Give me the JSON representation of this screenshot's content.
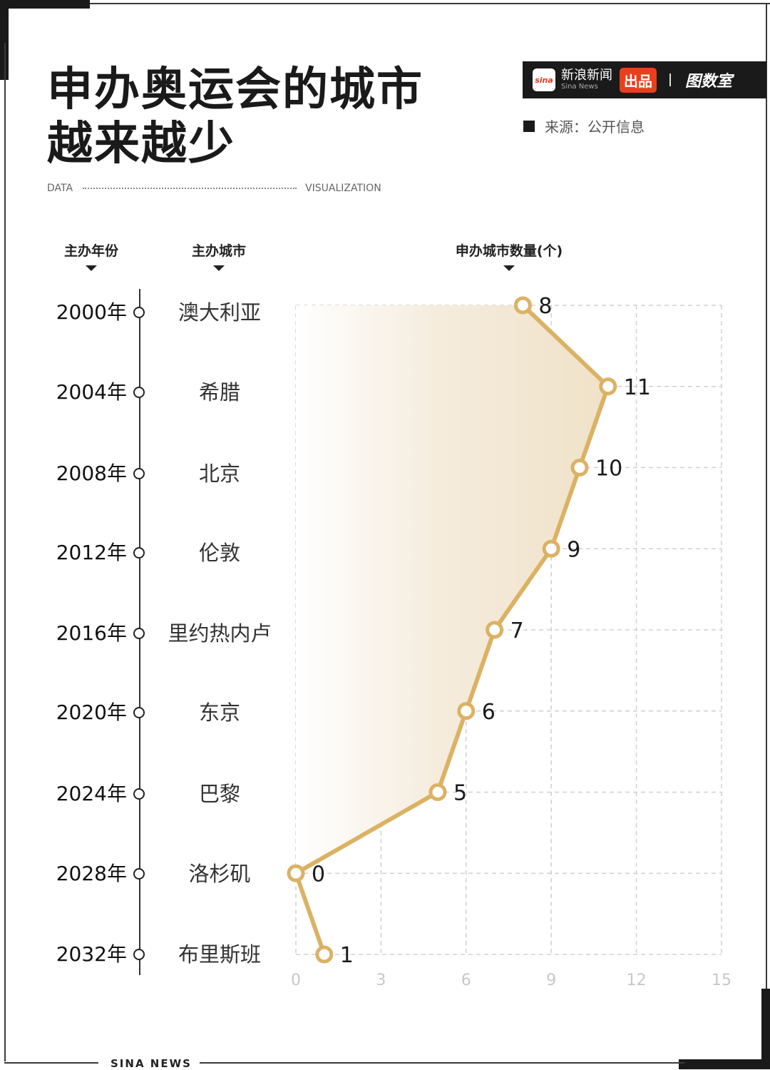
{
  "title": {
    "line1": "申办奥运会的城市",
    "line2": "越来越少"
  },
  "subtitle": {
    "left": "DATA",
    "right": "VISUALIZATION"
  },
  "brand": {
    "sina_logo": "sina",
    "name_cn": "新浪新闻",
    "name_en": "Sina News",
    "badge": "出品",
    "partner": "图数室"
  },
  "source": "来源：公开信息",
  "columns": {
    "year": "主办年份",
    "city": "主办城市",
    "count": "申办城市数量(个)"
  },
  "rows": [
    {
      "year": "2000年",
      "city": "澳大利亚",
      "count": "8"
    },
    {
      "year": "2004年",
      "city": "希腊",
      "count": "11"
    },
    {
      "year": "2008年",
      "city": "北京",
      "count": "10"
    },
    {
      "year": "2012年",
      "city": "伦敦",
      "count": "9"
    },
    {
      "year": "2016年",
      "city": "里约热内卢",
      "count": "7"
    },
    {
      "year": "2020年",
      "city": "东京",
      "count": "6"
    },
    {
      "year": "2024年",
      "city": "巴黎",
      "count": "5"
    },
    {
      "year": "2028年",
      "city": "洛杉矶",
      "count": "0"
    },
    {
      "year": "2032年",
      "city": "布里斯班",
      "count": "1"
    }
  ],
  "axis_ticks": [
    "0",
    "3",
    "6",
    "9",
    "12",
    "15"
  ],
  "footer": "SINA  NEWS",
  "colors": {
    "line": "#dbb264",
    "highlight": "#e2bd6b",
    "fill": "#f3e9d8",
    "grid": "#d0d0d0",
    "brand_red": "#e8401c"
  },
  "chart_data": {
    "type": "line",
    "orientation": "horizontal",
    "title": "申办奥运会的城市越来越少",
    "xlabel": "申办城市数量(个)",
    "ylabel": "主办年份",
    "categories": [
      "2000年",
      "2004年",
      "2008年",
      "2012年",
      "2016年",
      "2020年",
      "2024年",
      "2028年",
      "2032年"
    ],
    "host_cities": [
      "澳大利亚",
      "希腊",
      "北京",
      "伦敦",
      "里约热内卢",
      "东京",
      "巴黎",
      "洛杉矶",
      "布里斯班"
    ],
    "values": [
      8,
      11,
      10,
      9,
      7,
      6,
      5,
      0,
      1
    ],
    "xlim": [
      0,
      15
    ],
    "xticks": [
      0,
      3,
      6,
      9,
      12,
      15
    ],
    "grid": true,
    "source": "来源：公开信息"
  }
}
